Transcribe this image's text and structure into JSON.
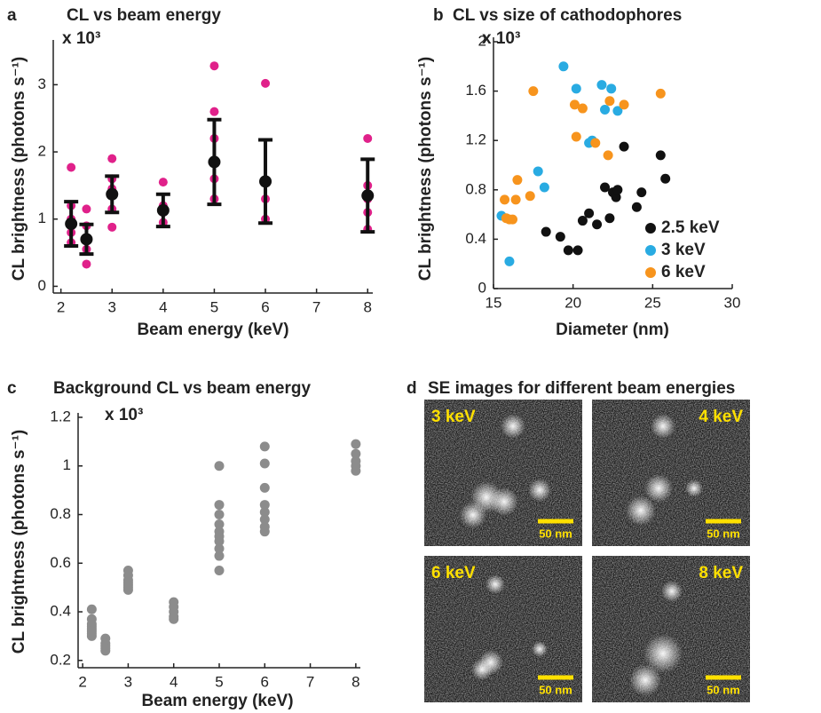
{
  "chart_data": [
    {
      "panel": "a",
      "type": "scatter",
      "title": "CL vs beam energy",
      "multiplier": "x 10³",
      "x_label": "Beam energy (keV)",
      "y_label": "CL brightness (photons s⁻¹)",
      "xlim": [
        1.85,
        8.1
      ],
      "ylim": [
        -0.1,
        3.6
      ],
      "xticks": [
        2,
        3,
        4,
        5,
        6,
        7,
        8
      ],
      "yticks": [
        0,
        1,
        2,
        3
      ],
      "series": [
        {
          "color": "#e0218a",
          "x": [
            2.2,
            2.2,
            2.2,
            2.2,
            2.2,
            2.5,
            2.5,
            2.5,
            2.5,
            2.5,
            3,
            3,
            3,
            3,
            3,
            3,
            4,
            4,
            4,
            4,
            5,
            5,
            5,
            5,
            5,
            5,
            6,
            6,
            6,
            6,
            8,
            8,
            8,
            8,
            8
          ],
          "values": [
            1.77,
            1.2,
            1.0,
            0.8,
            0.65,
            1.15,
            0.9,
            0.7,
            0.55,
            0.33,
            1.9,
            1.6,
            1.45,
            1.35,
            1.15,
            0.88,
            1.55,
            1.2,
            1.1,
            0.95,
            3.28,
            2.6,
            2.2,
            1.85,
            1.6,
            1.3,
            3.02,
            1.55,
            1.3,
            1.0,
            2.2,
            1.5,
            1.3,
            1.1,
            0.85
          ]
        },
        {
          "color": "#111111",
          "x": [
            2.2,
            2.5,
            3,
            4,
            5,
            6,
            8
          ],
          "values": [
            0.93,
            0.7,
            1.37,
            1.13,
            1.85,
            1.56,
            1.35
          ],
          "errors": [
            0.33,
            0.22,
            0.27,
            0.24,
            0.63,
            0.62,
            0.54
          ]
        }
      ]
    },
    {
      "panel": "b",
      "type": "scatter",
      "title": "CL vs size of cathodophores",
      "multiplier": "x 10³",
      "x_label": "Diameter (nm)",
      "y_label": "CL brightness (photons s⁻¹)",
      "xlim": [
        15,
        30
      ],
      "ylim": [
        0,
        2
      ],
      "xticks": [
        15,
        20,
        25,
        30
      ],
      "yticks": [
        0,
        0.4,
        0.8,
        1.2,
        1.6,
        2
      ],
      "legend": "lower right",
      "series": [
        {
          "name": "2.5 keV",
          "color": "#111111",
          "x": [
            18.3,
            19.2,
            19.7,
            20.3,
            20.6,
            21,
            21.5,
            22,
            22.3,
            22.5,
            22.7,
            22.8,
            23.2,
            24,
            24.3,
            25.5,
            25.8
          ],
          "values": [
            0.46,
            0.42,
            0.31,
            0.31,
            0.55,
            0.61,
            0.52,
            0.82,
            0.57,
            0.78,
            0.74,
            0.8,
            1.15,
            0.66,
            0.78,
            1.08,
            0.89
          ]
        },
        {
          "name": "3 keV",
          "color": "#29abe2",
          "x": [
            15.5,
            16,
            17.8,
            18.2,
            19.4,
            20.2,
            21,
            21.2,
            21.8,
            22,
            22.4,
            22.8
          ],
          "values": [
            0.59,
            0.22,
            0.95,
            0.82,
            1.8,
            1.62,
            1.18,
            1.2,
            1.65,
            1.45,
            1.62,
            1.44
          ]
        },
        {
          "name": "6 keV",
          "color": "#f7941d",
          "x": [
            15.7,
            15.8,
            16,
            16.2,
            16.4,
            16.5,
            17.3,
            17.5,
            20.1,
            20.2,
            20.6,
            21.4,
            22.2,
            22.3,
            23.2,
            25.5
          ],
          "values": [
            0.72,
            0.57,
            0.56,
            0.56,
            0.72,
            0.88,
            0.75,
            1.6,
            1.49,
            1.23,
            1.46,
            1.18,
            1.08,
            1.52,
            1.49,
            1.58
          ]
        }
      ]
    },
    {
      "panel": "c",
      "type": "scatter",
      "title": "Background CL vs beam energy",
      "multiplier": "x 10³",
      "x_label": "Beam energy (keV)",
      "y_label": "CL brightness (photons s⁻¹)",
      "xlim": [
        1.9,
        8.1
      ],
      "ylim": [
        0.17,
        1.2
      ],
      "xticks": [
        2,
        3,
        4,
        5,
        6,
        7,
        8
      ],
      "yticks": [
        0.2,
        0.4,
        0.6,
        0.8,
        1,
        1.2
      ],
      "series": [
        {
          "color": "#8c8c8c",
          "x": [
            2.2,
            2.2,
            2.2,
            2.2,
            2.2,
            2.2,
            2.2,
            2.2,
            2.5,
            2.5,
            2.5,
            2.5,
            2.5,
            3,
            3,
            3,
            3,
            3,
            3,
            3,
            4,
            4,
            4,
            4,
            4,
            5,
            5,
            5,
            5,
            5,
            5,
            5,
            5,
            5,
            5,
            6,
            6,
            6,
            6,
            6,
            6,
            6,
            6,
            8,
            8,
            8,
            8,
            8
          ],
          "values": [
            0.41,
            0.37,
            0.35,
            0.34,
            0.33,
            0.32,
            0.31,
            0.3,
            0.29,
            0.27,
            0.26,
            0.25,
            0.24,
            0.57,
            0.55,
            0.53,
            0.52,
            0.51,
            0.5,
            0.49,
            0.44,
            0.42,
            0.4,
            0.38,
            0.37,
            1.0,
            0.84,
            0.8,
            0.76,
            0.73,
            0.71,
            0.69,
            0.66,
            0.63,
            0.57,
            1.08,
            1.01,
            0.91,
            0.84,
            0.81,
            0.78,
            0.75,
            0.73,
            1.09,
            1.05,
            1.02,
            1.0,
            0.98
          ]
        }
      ]
    }
  ],
  "image_panel": {
    "panel": "d",
    "title": "SE images for different beam energies",
    "tiles": [
      {
        "label": "3 keV",
        "scale": "50 nm"
      },
      {
        "label": "4 keV",
        "scale": "50 nm"
      },
      {
        "label": "6 keV",
        "scale": "50 nm"
      },
      {
        "label": "8 keV",
        "scale": "50 nm"
      }
    ]
  }
}
